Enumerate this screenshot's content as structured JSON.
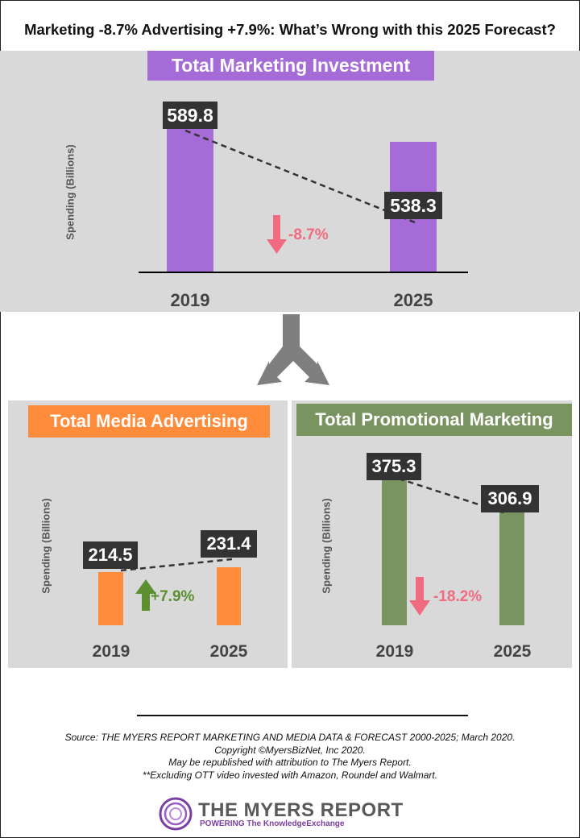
{
  "header": {
    "title": "Marketing -8.7% Advertising +7.9%: What’s Wrong with this 2025 Forecast?"
  },
  "colors": {
    "purple": "#a56bd6",
    "orange": "#ff8c3a",
    "green": "#7a9461",
    "panel": "#d9d9d9",
    "arrow_gray": "#7f7f7f",
    "down": "#f06b80",
    "up": "#5c8f2e"
  },
  "chart_data": [
    {
      "type": "bar",
      "title": "Total Marketing Investment",
      "ylabel": "Spending (Billions)",
      "categories": [
        "2019",
        "2025"
      ],
      "values": [
        589.8,
        538.3
      ],
      "value_labels": [
        "589.8",
        "538.3"
      ],
      "change_label": "-8.7%",
      "change_direction": "down"
    },
    {
      "type": "bar",
      "title": "Total Media Advertising",
      "ylabel": "Spending (Billions)",
      "categories": [
        "2019",
        "2025"
      ],
      "values": [
        214.5,
        231.4
      ],
      "value_labels": [
        "214.5",
        "231.4"
      ],
      "change_label": "+7.9%",
      "change_direction": "up"
    },
    {
      "type": "bar",
      "title": "Total Promotional Marketing",
      "ylabel": "Spending (Billions)",
      "categories": [
        "2019",
        "2025"
      ],
      "values": [
        375.3,
        306.9
      ],
      "value_labels": [
        "375.3",
        "306.9"
      ],
      "change_label": "-18.2%",
      "change_direction": "down"
    }
  ],
  "footer": {
    "lines": [
      "Source: THE MYERS REPORT MARKETING AND MEDIA DATA & FORECAST 2000-2025; March 2020.",
      "Copyright ©MyersBizNet, Inc 2020.",
      "May be republished with attribution to The Myers Report.",
      "**Excluding OTT video invested with Amazon, Roundel and Walmart."
    ],
    "logo_name": "THE MYERS REPORT",
    "logo_tagline": "POWERING The KnowledgeExchange"
  }
}
